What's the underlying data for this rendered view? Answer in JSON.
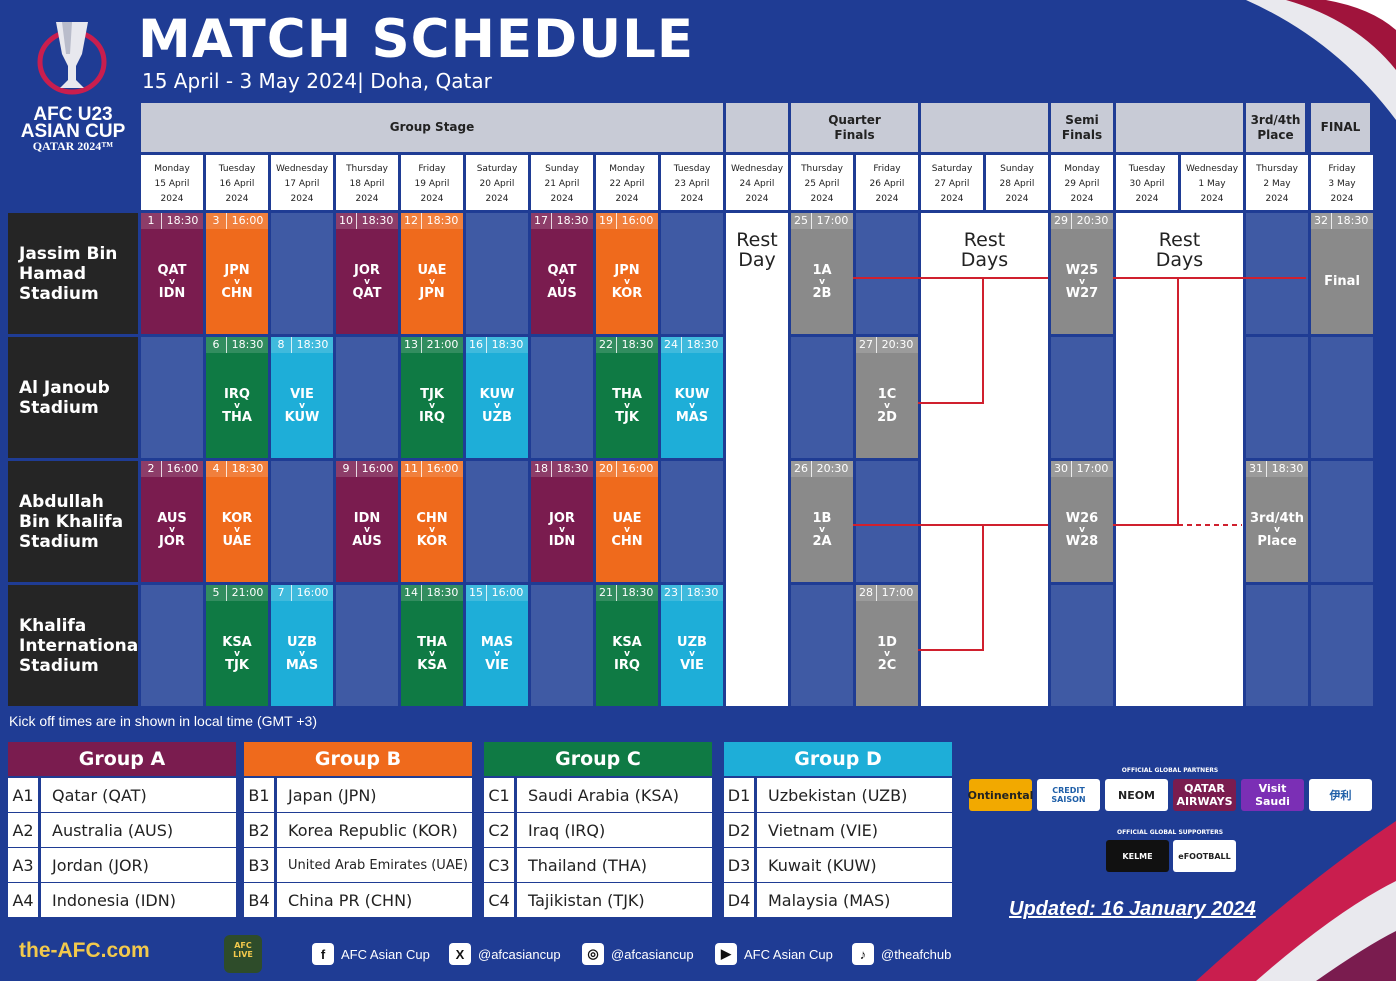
{
  "header": {
    "title": "MATCH SCHEDULE",
    "subtitle": "15 April - 3 May 2024| Doha, Qatar",
    "logo": {
      "line1": "AFC U23",
      "line2": "ASIAN CUP",
      "line3": "QATAR 2024™"
    }
  },
  "stages": {
    "group": "Group Stage",
    "qf1": "Quarter",
    "qf2": "Finals",
    "sf1": "Semi",
    "sf2": "Finals",
    "third1": "3rd/4th",
    "third2": "Place",
    "final": "FINAL"
  },
  "days": [
    {
      "dow": "Monday",
      "date": "15 April",
      "year": "2024"
    },
    {
      "dow": "Tuesday",
      "date": "16 April",
      "year": "2024"
    },
    {
      "dow": "Wednesday",
      "date": "17 April",
      "year": "2024"
    },
    {
      "dow": "Thursday",
      "date": "18 April",
      "year": "2024"
    },
    {
      "dow": "Friday",
      "date": "19 April",
      "year": "2024"
    },
    {
      "dow": "Saturday",
      "date": "20 April",
      "year": "2024"
    },
    {
      "dow": "Sunday",
      "date": "21 April",
      "year": "2024"
    },
    {
      "dow": "Monday",
      "date": "22 April",
      "year": "2024"
    },
    {
      "dow": "Tuesday",
      "date": "23 April",
      "year": "2024"
    },
    {
      "dow": "Wednesday",
      "date": "24 April",
      "year": "2024"
    },
    {
      "dow": "Thursday",
      "date": "25 April",
      "year": "2024"
    },
    {
      "dow": "Friday",
      "date": "26 April",
      "year": "2024"
    },
    {
      "dow": "Saturday",
      "date": "27 April",
      "year": "2024"
    },
    {
      "dow": "Sunday",
      "date": "28 April",
      "year": "2024"
    },
    {
      "dow": "Monday",
      "date": "29 April",
      "year": "2024"
    },
    {
      "dow": "Tuesday",
      "date": "30 April",
      "year": "2024"
    },
    {
      "dow": "Wednesday",
      "date": "1 May",
      "year": "2024"
    },
    {
      "dow": "Thursday",
      "date": "2 May",
      "year": "2024"
    },
    {
      "dow": "Friday",
      "date": "3 May",
      "year": "2024"
    }
  ],
  "stadiums": [
    "Jassim Bin Hamad Stadium",
    "Al Janoub Stadium",
    "Abdullah Bin Khalifa Stadium",
    "Khalifa International Stadium"
  ],
  "rest": {
    "day1": "Rest",
    "day2": "Day",
    "days2": "Days"
  },
  "matches": [
    {
      "s": 0,
      "d": 0,
      "g": "a",
      "n": "1",
      "t": "18:30",
      "h": "QAT",
      "a": "IDN"
    },
    {
      "s": 0,
      "d": 1,
      "g": "b",
      "n": "3",
      "t": "16:00",
      "h": "JPN",
      "a": "CHN"
    },
    {
      "s": 0,
      "d": 3,
      "g": "a",
      "n": "10",
      "t": "18:30",
      "h": "JOR",
      "a": "QAT"
    },
    {
      "s": 0,
      "d": 4,
      "g": "b",
      "n": "12",
      "t": "18:30",
      "h": "UAE",
      "a": "JPN"
    },
    {
      "s": 0,
      "d": 6,
      "g": "a",
      "n": "17",
      "t": "18:30",
      "h": "QAT",
      "a": "AUS"
    },
    {
      "s": 0,
      "d": 7,
      "g": "b",
      "n": "19",
      "t": "16:00",
      "h": "JPN",
      "a": "KOR"
    },
    {
      "s": 0,
      "d": 10,
      "g": "ko",
      "n": "25",
      "t": "17:00",
      "h": "1A",
      "a": "2B"
    },
    {
      "s": 0,
      "d": 14,
      "g": "ko",
      "n": "29",
      "t": "20:30",
      "h": "W25",
      "a": "W27"
    },
    {
      "s": 0,
      "d": 18,
      "g": "ko",
      "n": "32",
      "t": "18:30",
      "h": "Final",
      "a": ""
    },
    {
      "s": 1,
      "d": 1,
      "g": "c",
      "n": "6",
      "t": "18:30",
      "h": "IRQ",
      "a": "THA"
    },
    {
      "s": 1,
      "d": 2,
      "g": "d",
      "n": "8",
      "t": "18:30",
      "h": "VIE",
      "a": "KUW"
    },
    {
      "s": 1,
      "d": 4,
      "g": "c",
      "n": "13",
      "t": "21:00",
      "h": "TJK",
      "a": "IRQ"
    },
    {
      "s": 1,
      "d": 5,
      "g": "d",
      "n": "16",
      "t": "18:30",
      "h": "KUW",
      "a": "UZB"
    },
    {
      "s": 1,
      "d": 7,
      "g": "c",
      "n": "22",
      "t": "18:30",
      "h": "THA",
      "a": "TJK"
    },
    {
      "s": 1,
      "d": 8,
      "g": "d",
      "n": "24",
      "t": "18:30",
      "h": "KUW",
      "a": "MAS"
    },
    {
      "s": 1,
      "d": 11,
      "g": "ko",
      "n": "27",
      "t": "20:30",
      "h": "1C",
      "a": "2D"
    },
    {
      "s": 2,
      "d": 0,
      "g": "a",
      "n": "2",
      "t": "16:00",
      "h": "AUS",
      "a": "JOR"
    },
    {
      "s": 2,
      "d": 1,
      "g": "b",
      "n": "4",
      "t": "18:30",
      "h": "KOR",
      "a": "UAE"
    },
    {
      "s": 2,
      "d": 3,
      "g": "a",
      "n": "9",
      "t": "16:00",
      "h": "IDN",
      "a": "AUS"
    },
    {
      "s": 2,
      "d": 4,
      "g": "b",
      "n": "11",
      "t": "16:00",
      "h": "CHN",
      "a": "KOR"
    },
    {
      "s": 2,
      "d": 6,
      "g": "a",
      "n": "18",
      "t": "18:30",
      "h": "JOR",
      "a": "IDN"
    },
    {
      "s": 2,
      "d": 7,
      "g": "b",
      "n": "20",
      "t": "16:00",
      "h": "UAE",
      "a": "CHN"
    },
    {
      "s": 2,
      "d": 10,
      "g": "ko",
      "n": "26",
      "t": "20:30",
      "h": "1B",
      "a": "2A"
    },
    {
      "s": 2,
      "d": 14,
      "g": "ko",
      "n": "30",
      "t": "17:00",
      "h": "W26",
      "a": "W28"
    },
    {
      "s": 2,
      "d": 17,
      "g": "ko",
      "n": "31",
      "t": "18:30",
      "h": "3rd/4th",
      "a": "Place"
    },
    {
      "s": 3,
      "d": 1,
      "g": "c",
      "n": "5",
      "t": "21:00",
      "h": "KSA",
      "a": "TJK"
    },
    {
      "s": 3,
      "d": 2,
      "g": "d",
      "n": "7",
      "t": "16:00",
      "h": "UZB",
      "a": "MAS"
    },
    {
      "s": 3,
      "d": 4,
      "g": "c",
      "n": "14",
      "t": "18:30",
      "h": "THA",
      "a": "KSA"
    },
    {
      "s": 3,
      "d": 5,
      "g": "d",
      "n": "15",
      "t": "16:00",
      "h": "MAS",
      "a": "VIE"
    },
    {
      "s": 3,
      "d": 7,
      "g": "c",
      "n": "21",
      "t": "18:30",
      "h": "KSA",
      "a": "IRQ"
    },
    {
      "s": 3,
      "d": 8,
      "g": "d",
      "n": "23",
      "t": "18:30",
      "h": "UZB",
      "a": "VIE"
    },
    {
      "s": 3,
      "d": 11,
      "g": "ko",
      "n": "28",
      "t": "17:00",
      "h": "1D",
      "a": "2C"
    }
  ],
  "note": "Kick off times are in shown in local time (GMT +3)",
  "groups": [
    {
      "name": "Group A",
      "color": "#7a1c4f",
      "teams": [
        [
          "A1",
          "Qatar (QAT)"
        ],
        [
          "A2",
          "Australia (AUS)"
        ],
        [
          "A3",
          "Jordan (JOR)"
        ],
        [
          "A4",
          "Indonesia (IDN)"
        ]
      ]
    },
    {
      "name": "Group B",
      "color": "#ef6a1c",
      "teams": [
        [
          "B1",
          "Japan (JPN)"
        ],
        [
          "B2",
          "Korea Republic (KOR)"
        ],
        [
          "B3",
          "United Arab Emirates (UAE)"
        ],
        [
          "B4",
          "China PR (CHN)"
        ]
      ]
    },
    {
      "name": "Group C",
      "color": "#0f7a44",
      "teams": [
        [
          "C1",
          "Saudi Arabia (KSA)"
        ],
        [
          "C2",
          "Iraq (IRQ)"
        ],
        [
          "C3",
          "Thailand (THA)"
        ],
        [
          "C4",
          "Tajikistan (TJK)"
        ]
      ]
    },
    {
      "name": "Group D",
      "color": "#1eaed8",
      "teams": [
        [
          "D1",
          "Uzbekistan (UZB)"
        ],
        [
          "D2",
          "Vietnam (VIE)"
        ],
        [
          "D3",
          "Kuwait (KUW)"
        ],
        [
          "D4",
          "Malaysia (MAS)"
        ]
      ]
    }
  ],
  "partners": {
    "title": "OFFICIAL GLOBAL PARTNERS",
    "items": [
      "Ontinental",
      "CREDIT SAISON",
      "NEOM",
      "QATAR AIRWAYS",
      "Visit Saudi",
      "伊利"
    ],
    "supporters_title": "OFFICIAL GLOBAL SUPPORTERS",
    "supporters": [
      "KELME",
      "eFOOTBALL"
    ]
  },
  "updated": "Updated: 16 January 2024",
  "footer": {
    "site": "the-AFC.com",
    "live": "AFC LIVE",
    "social": [
      {
        "icon": "facebook-icon",
        "glyph": "f",
        "label": "AFC Asian Cup"
      },
      {
        "icon": "x-icon",
        "glyph": "X",
        "label": "@afcasiancup"
      },
      {
        "icon": "instagram-icon",
        "glyph": "◎",
        "label": "@afcasiancup"
      },
      {
        "icon": "youtube-icon",
        "glyph": "▶",
        "label": "AFC Asian Cup"
      },
      {
        "icon": "tiktok-icon",
        "glyph": "♪",
        "label": "@theafchub"
      }
    ]
  },
  "colors": {
    "bg": "#1f3c94",
    "groupA": "#7a1c4f",
    "groupB": "#ef6a1c",
    "groupC": "#0f7a44",
    "groupD": "#1eaed8",
    "knockout": "#8a8a8a",
    "bracket": "#d0202e"
  }
}
